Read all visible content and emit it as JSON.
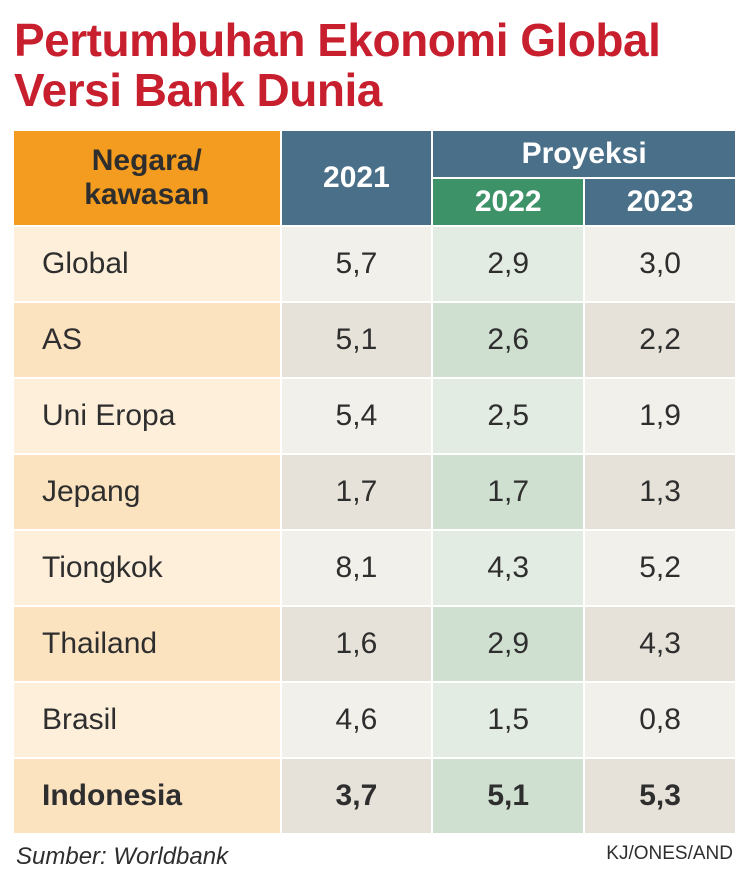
{
  "title_text": "Pertumbuhan Ekonomi Global Versi Bank Dunia",
  "title_color": "#c81f2e",
  "header": {
    "region": "Negara/\nkawasan",
    "year_main": "2021",
    "projection": "Proyeksi",
    "year_a": "2022",
    "year_b": "2023",
    "region_bg": "#f39c1f",
    "region_fg": "#2e2e2e",
    "blue_bg": "#4a7089",
    "green_bg": "#3e9268",
    "year_fg": "#ffffff"
  },
  "columns": {
    "widths": [
      "37%",
      "21%",
      "21%",
      "21%"
    ]
  },
  "body_colors": {
    "name_a": "#fce3c0",
    "name_b": "#fdefda",
    "col21_a": "#e6e2d9",
    "col21_b": "#f2f0ea",
    "col22_a": "#cfe0d1",
    "col22_b": "#e3ece2",
    "col23_a": "#e6e2d9",
    "col23_b": "#f2f0ea",
    "cell_fg": "#2e2e2e"
  },
  "rows": [
    {
      "name": "Global",
      "v21": "5,7",
      "v22": "2,9",
      "v23": "3,0",
      "bold": false
    },
    {
      "name": "AS",
      "v21": "5,1",
      "v22": "2,6",
      "v23": "2,2",
      "bold": false
    },
    {
      "name": "Uni Eropa",
      "v21": "5,4",
      "v22": "2,5",
      "v23": "1,9",
      "bold": false
    },
    {
      "name": "Jepang",
      "v21": "1,7",
      "v22": "1,7",
      "v23": "1,3",
      "bold": false
    },
    {
      "name": "Tiongkok",
      "v21": "8,1",
      "v22": "4,3",
      "v23": "5,2",
      "bold": false
    },
    {
      "name": "Thailand",
      "v21": "1,6",
      "v22": "2,9",
      "v23": "4,3",
      "bold": false
    },
    {
      "name": "Brasil",
      "v21": "4,6",
      "v22": "1,5",
      "v23": "0,8",
      "bold": false
    },
    {
      "name": "Indonesia",
      "v21": "3,7",
      "v22": "5,1",
      "v23": "5,3",
      "bold": true
    }
  ],
  "footer": {
    "source": "Sumber:  Worldbank",
    "credit": "KJ/ONES/AND",
    "fg": "#2e2e2e"
  }
}
